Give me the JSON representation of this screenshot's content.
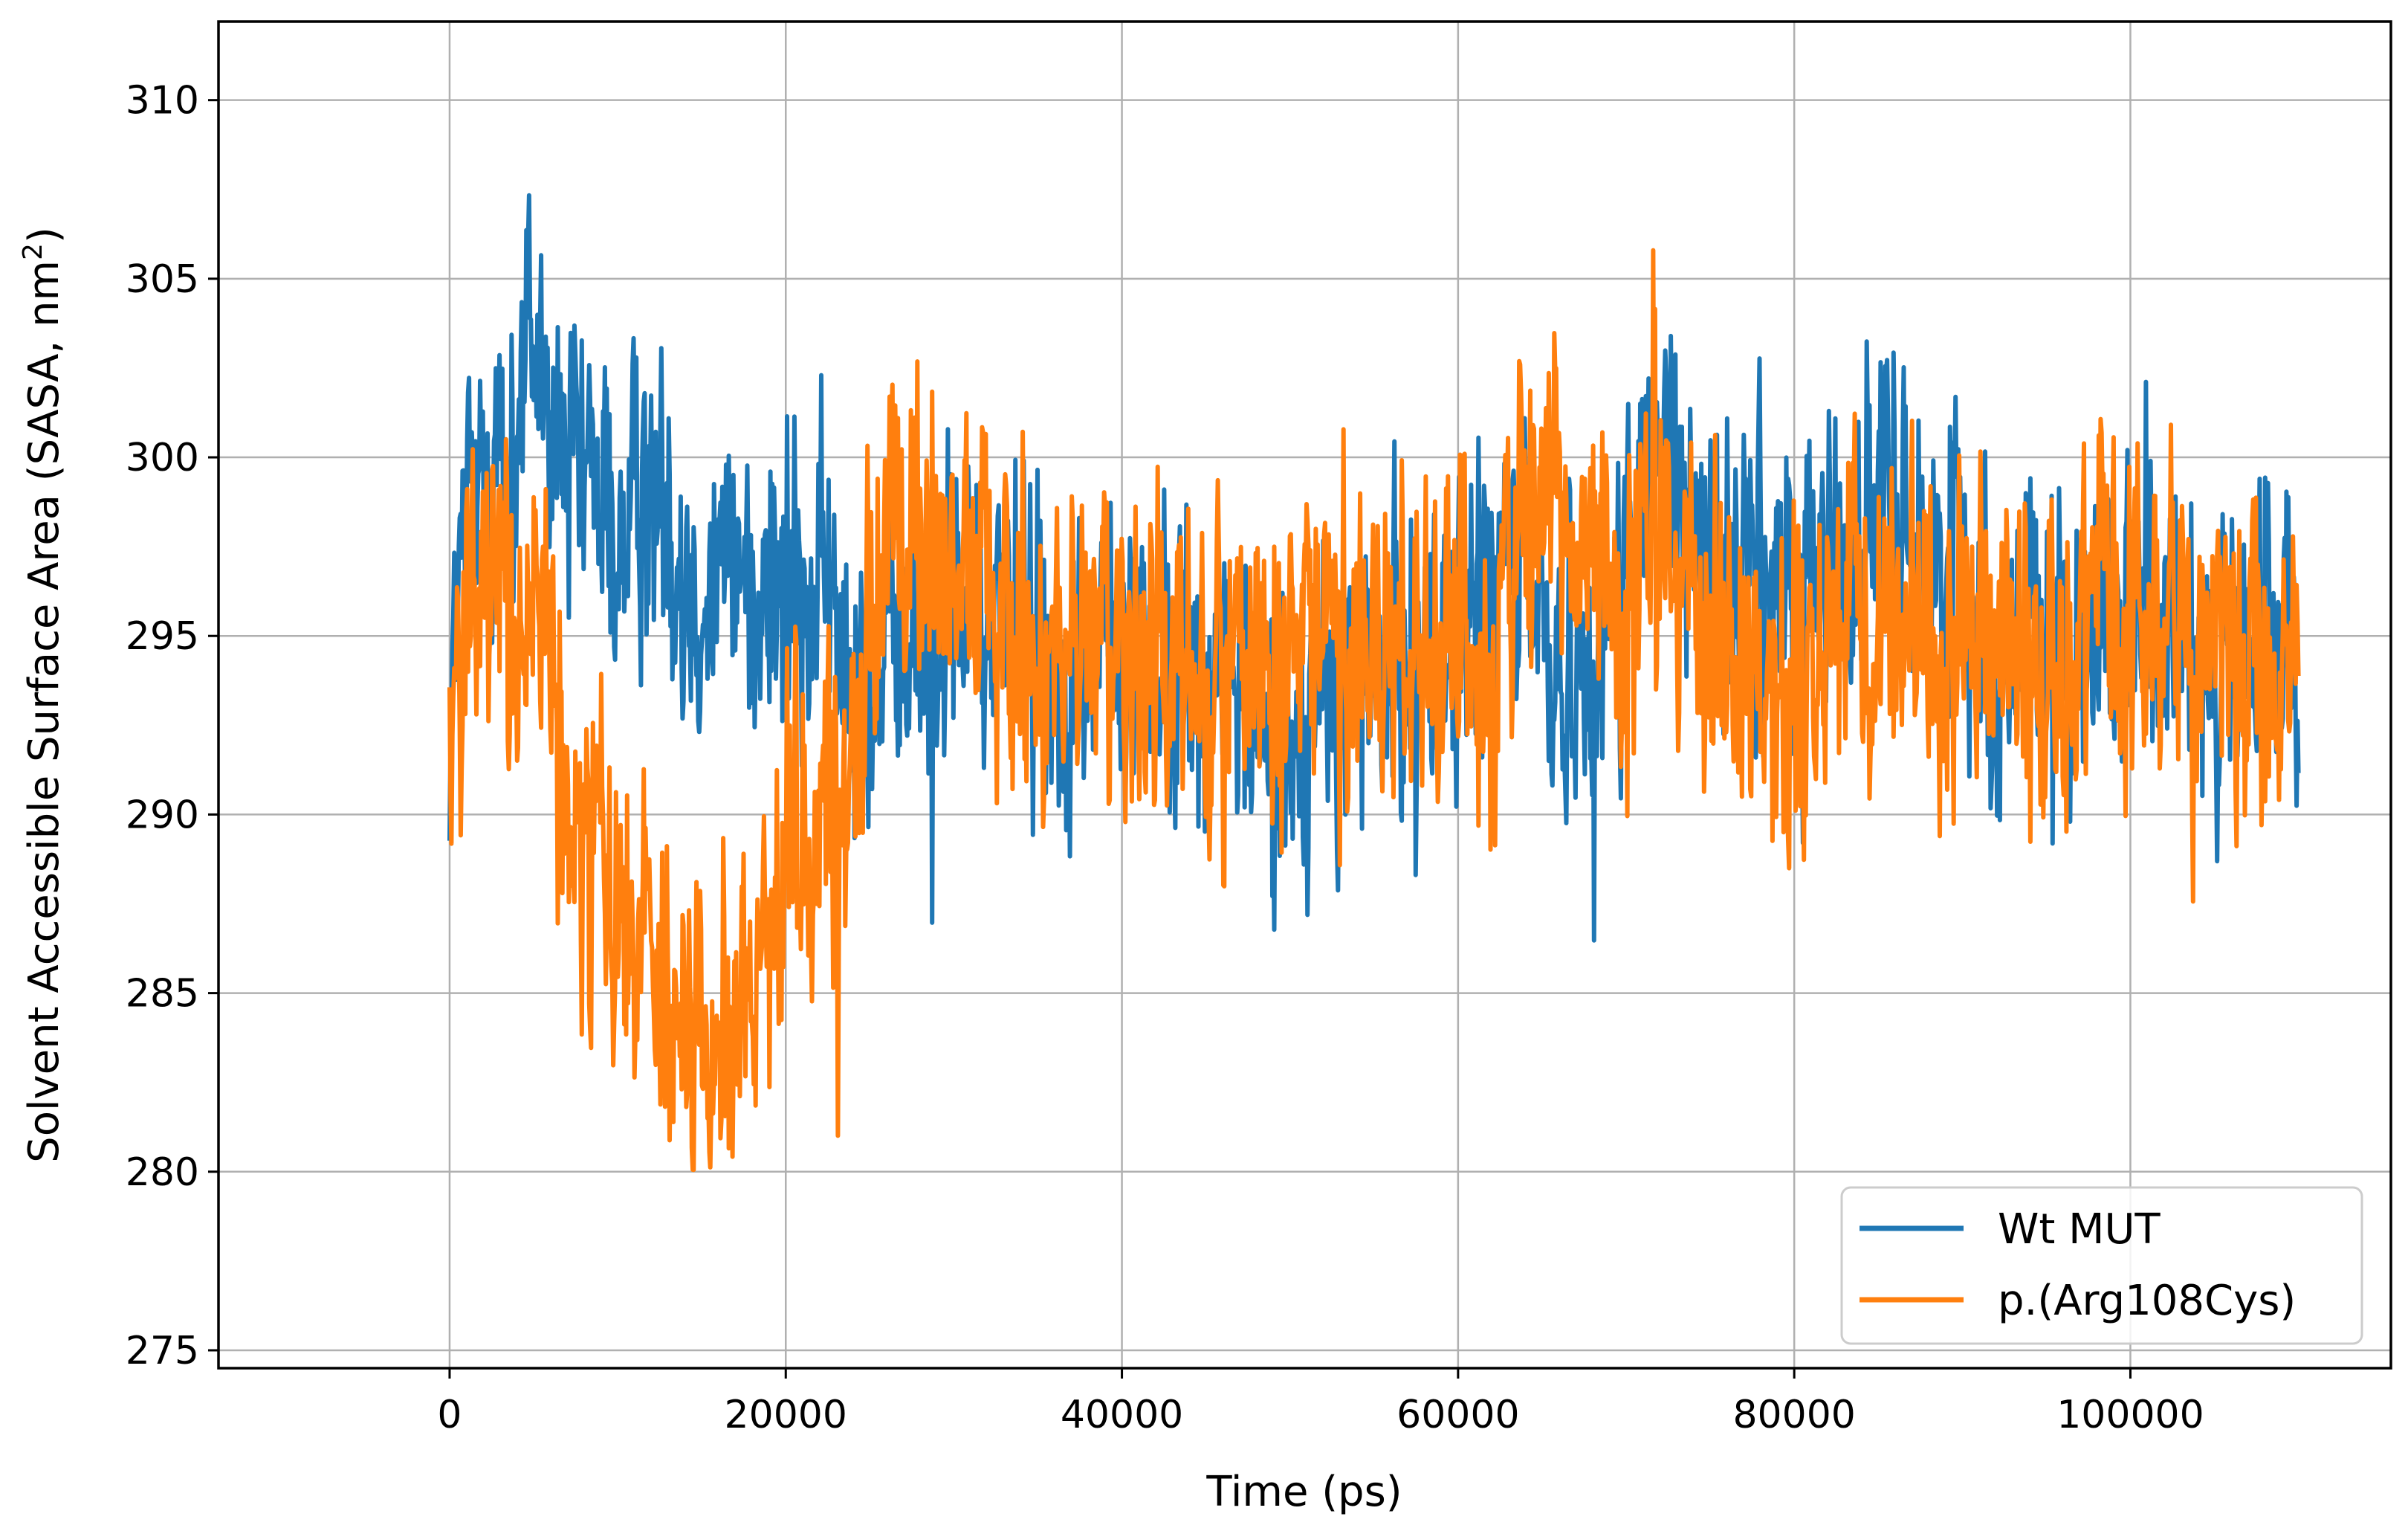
{
  "chart_data": {
    "type": "line",
    "title": "",
    "xlabel": "Time (ps)",
    "ylabel_main": "Solvent Accessible Surface Area (SASA, nm",
    "ylabel_sup": "2",
    "ylabel_tail": ")",
    "xlim": [
      -13750,
      115500
    ],
    "ylim": [
      274.5,
      312.2
    ],
    "x_ticks": [
      0,
      20000,
      40000,
      60000,
      80000,
      100000
    ],
    "x_tick_labels": [
      "0",
      "20000",
      "40000",
      "60000",
      "80000",
      "100000"
    ],
    "y_ticks": [
      275,
      280,
      285,
      290,
      295,
      300,
      305,
      310
    ],
    "y_tick_labels": [
      "275",
      "280",
      "285",
      "290",
      "295",
      "300",
      "305",
      "310"
    ],
    "grid": true,
    "legend_position": "lower-right",
    "series": [
      {
        "name": "Wt MUT",
        "color": "#1f77b4",
        "noise_amplitude": 2.8,
        "x": [
          0,
          1000,
          2000,
          3000,
          4000,
          4800,
          6000,
          8000,
          10000,
          12000,
          14000,
          16000,
          18000,
          20000,
          22000,
          24000,
          26000,
          28000,
          30000,
          32000,
          34000,
          36000,
          38000,
          40000,
          42000,
          44000,
          46000,
          48000,
          49000,
          50000,
          52000,
          54000,
          56000,
          58000,
          60000,
          62000,
          64000,
          66000,
          68000,
          70000,
          72000,
          74000,
          76000,
          78000,
          80000,
          82000,
          84000,
          86000,
          88000,
          90000,
          92000,
          94000,
          96000,
          98000,
          100000,
          102000,
          104000,
          106000,
          108000,
          110000
        ],
        "y": [
          293,
          298.5,
          300,
          299,
          300,
          304.5,
          300,
          299,
          298,
          299,
          297,
          297,
          296.5,
          296,
          296.5,
          294,
          293.5,
          295,
          296,
          295.5,
          296,
          294,
          295,
          294.5,
          294,
          294,
          294,
          293,
          291,
          292,
          293,
          293.5,
          294,
          294.5,
          295,
          296,
          297,
          294,
          294.5,
          297,
          300,
          298,
          296.5,
          297,
          296,
          297,
          298,
          299,
          297,
          297.5,
          294,
          295.5,
          295,
          296,
          295,
          295,
          294.5,
          294.5,
          294.5,
          294
        ]
      },
      {
        "name": "p.(Arg108Cys)",
        "color": "#ff7f0e",
        "noise_amplitude": 3.0,
        "x": [
          0,
          1000,
          2000,
          3000,
          4000,
          5000,
          6000,
          7000,
          8000,
          9000,
          10000,
          11000,
          12000,
          13000,
          14000,
          15000,
          16000,
          17000,
          18000,
          19000,
          20000,
          21000,
          22000,
          23000,
          24000,
          25000,
          26000,
          28000,
          30000,
          32000,
          34000,
          36000,
          38000,
          40000,
          42000,
          44000,
          46000,
          48000,
          50000,
          52000,
          54000,
          56000,
          58000,
          60000,
          62000,
          64000,
          66000,
          68000,
          70000,
          72000,
          74000,
          76000,
          78000,
          80000,
          82000,
          84000,
          86000,
          88000,
          90000,
          92000,
          94000,
          96000,
          98000,
          100000,
          102000,
          104000,
          106000,
          108000,
          110000
        ],
        "y": [
          293,
          295.5,
          296,
          296,
          295.5,
          296,
          294,
          290,
          289,
          289,
          288,
          288,
          287,
          285.5,
          284,
          284,
          284.5,
          284,
          285,
          287,
          289,
          289.5,
          290,
          291,
          292,
          295,
          297,
          297.5,
          297.5,
          296,
          294.5,
          294.5,
          294,
          294,
          294.5,
          293.5,
          293.5,
          294,
          294.5,
          296,
          295,
          295,
          295,
          295.5,
          293.5,
          299,
          299,
          297,
          296,
          297,
          294.5,
          294,
          293.5,
          294,
          294.5,
          295.5,
          296,
          294.5,
          295,
          296,
          293.5,
          295,
          297.5,
          295.5,
          295,
          295,
          295.5,
          294.5,
          294
        ]
      }
    ]
  }
}
